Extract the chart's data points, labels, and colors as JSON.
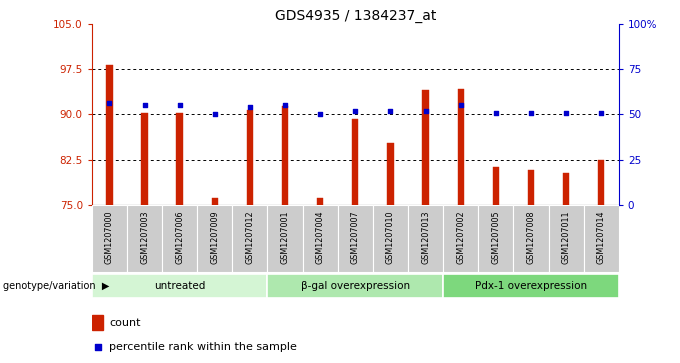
{
  "title": "GDS4935 / 1384237_at",
  "samples": [
    "GSM1207000",
    "GSM1207003",
    "GSM1207006",
    "GSM1207009",
    "GSM1207012",
    "GSM1207001",
    "GSM1207004",
    "GSM1207007",
    "GSM1207010",
    "GSM1207013",
    "GSM1207002",
    "GSM1207005",
    "GSM1207008",
    "GSM1207011",
    "GSM1207014"
  ],
  "counts": [
    98.2,
    90.2,
    90.3,
    76.2,
    90.7,
    91.3,
    76.1,
    89.2,
    85.3,
    94.0,
    94.2,
    81.3,
    80.8,
    80.3,
    82.5
  ],
  "percentile_ranks": [
    56,
    55,
    55,
    50,
    54,
    55,
    50,
    52,
    52,
    52,
    55,
    51,
    51,
    51,
    51
  ],
  "ylim_left": [
    75,
    105
  ],
  "ylim_right": [
    0,
    100
  ],
  "yticks_left": [
    75,
    82.5,
    90,
    97.5,
    105
  ],
  "yticks_right": [
    0,
    25,
    50,
    75,
    100
  ],
  "ytick_labels_right": [
    "0",
    "25",
    "50",
    "75",
    "100%"
  ],
  "bar_color": "#cc2200",
  "dot_color": "#0000cc",
  "groups": [
    {
      "label": "untreated",
      "start": 0,
      "end": 4
    },
    {
      "label": "β-gal overexpression",
      "start": 5,
      "end": 9
    },
    {
      "label": "Pdx-1 overexpression",
      "start": 10,
      "end": 14
    }
  ],
  "group_colors": [
    "#d4f5d4",
    "#aee8ae",
    "#7dd87d"
  ],
  "group_label": "genotype/variation",
  "legend_count_label": "count",
  "legend_percentile_label": "percentile rank within the sample",
  "tick_color_left": "#cc2200",
  "tick_color_right": "#0000cc",
  "bar_bottom": 75,
  "bar_width": 0.18,
  "xtick_bg_color": "#cccccc"
}
